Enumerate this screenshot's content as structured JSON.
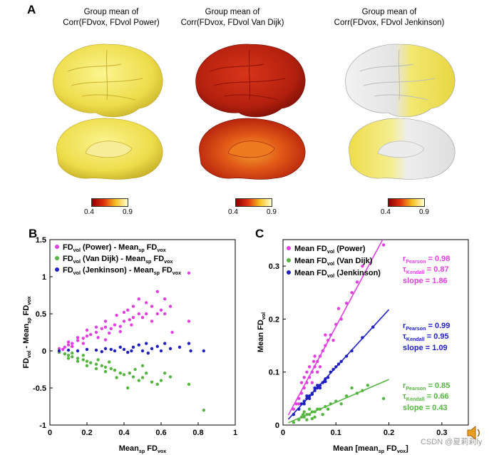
{
  "panel_a": {
    "letter": "A",
    "brains": [
      {
        "title_line1": "Group mean of",
        "title_line2": "Corr(FDvox, FDvol Power)",
        "colormap_hint": "yellow"
      },
      {
        "title_line1": "Group mean of",
        "title_line2": "Corr(FDvox, FDvol Van Dijk)",
        "colormap_hint": "red"
      },
      {
        "title_line1": "Group mean of",
        "title_line2": "Corr(FDvox, FDvol Jenkinson)",
        "colormap_hint": "white-yellow"
      }
    ],
    "colorbar": {
      "min_label": "0.4",
      "max_label": "0.9",
      "colors": [
        "#8b0000",
        "#e03010",
        "#f5c020",
        "#ffffd0"
      ]
    }
  },
  "chart_data": [
    {
      "panel": "B",
      "type": "scatter",
      "xlabel": "Mean_sp FD_vox",
      "ylabel": "FD_vol - Mean_sp FD_vox",
      "xlim": [
        0,
        1
      ],
      "ylim": [
        -1,
        1.5
      ],
      "xticks": [
        "0",
        "0.2",
        "0.4",
        "0.6",
        "0.8",
        "1"
      ],
      "yticks": [
        "-1",
        "-0.5",
        "0",
        "0.5",
        "1",
        "1.5"
      ],
      "legend_position": "top-left",
      "series": [
        {
          "name": "FDvol (Power) - Meansp FDvox",
          "color": "#e040e0",
          "points": [
            [
              0.05,
              0.03
            ],
            [
              0.08,
              0.05
            ],
            [
              0.1,
              0.08
            ],
            [
              0.12,
              0.1
            ],
            [
              0.15,
              0.14
            ],
            [
              0.18,
              0.17
            ],
            [
              0.2,
              0.2
            ],
            [
              0.22,
              0.22
            ],
            [
              0.25,
              0.25
            ],
            [
              0.28,
              0.3
            ],
            [
              0.3,
              0.32
            ],
            [
              0.33,
              0.3
            ],
            [
              0.35,
              0.35
            ],
            [
              0.38,
              0.33
            ],
            [
              0.4,
              0.4
            ],
            [
              0.43,
              0.42
            ],
            [
              0.45,
              0.45
            ],
            [
              0.48,
              0.5
            ],
            [
              0.5,
              0.45
            ],
            [
              0.52,
              0.5
            ],
            [
              0.55,
              0.6
            ],
            [
              0.58,
              0.5
            ],
            [
              0.6,
              0.55
            ],
            [
              0.62,
              0.7
            ],
            [
              0.65,
              0.6
            ],
            [
              0.48,
              0.7
            ],
            [
              0.42,
              0.55
            ],
            [
              0.36,
              0.48
            ],
            [
              0.3,
              0.4
            ],
            [
              0.25,
              0.32
            ],
            [
              0.2,
              0.28
            ],
            [
              0.15,
              0.18
            ],
            [
              0.1,
              0.12
            ],
            [
              0.62,
              0.5
            ],
            [
              0.66,
              0.25
            ],
            [
              0.75,
              0.4
            ],
            [
              0.75,
              1.05
            ],
            [
              0.58,
              0.8
            ],
            [
              0.52,
              0.65
            ],
            [
              0.4,
              0.52
            ],
            [
              0.45,
              0.6
            ],
            [
              0.55,
              0.4
            ],
            [
              0.18,
              0.1
            ],
            [
              0.12,
              0.06
            ],
            [
              0.07,
              0.02
            ],
            [
              0.26,
              0.18
            ],
            [
              0.32,
              0.24
            ],
            [
              0.38,
              0.26
            ],
            [
              0.44,
              0.35
            ],
            [
              0.3,
              0.15
            ]
          ]
        },
        {
          "name": "FDvol (Van Dijk) - Meansp FDvox",
          "color": "#55b540",
          "points": [
            [
              0.05,
              -0.02
            ],
            [
              0.08,
              -0.04
            ],
            [
              0.1,
              -0.06
            ],
            [
              0.12,
              -0.08
            ],
            [
              0.15,
              -0.1
            ],
            [
              0.18,
              -0.12
            ],
            [
              0.2,
              -0.14
            ],
            [
              0.22,
              -0.16
            ],
            [
              0.25,
              -0.18
            ],
            [
              0.28,
              -0.2
            ],
            [
              0.3,
              -0.22
            ],
            [
              0.33,
              -0.24
            ],
            [
              0.35,
              -0.26
            ],
            [
              0.38,
              -0.3
            ],
            [
              0.4,
              -0.32
            ],
            [
              0.43,
              -0.3
            ],
            [
              0.45,
              -0.35
            ],
            [
              0.48,
              -0.4
            ],
            [
              0.5,
              -0.36
            ],
            [
              0.52,
              -0.3
            ],
            [
              0.55,
              -0.42
            ],
            [
              0.58,
              -0.45
            ],
            [
              0.6,
              -0.4
            ],
            [
              0.65,
              -0.35
            ],
            [
              0.75,
              -0.45
            ],
            [
              0.83,
              -0.8
            ],
            [
              0.42,
              -0.5
            ],
            [
              0.36,
              -0.36
            ],
            [
              0.3,
              -0.28
            ],
            [
              0.25,
              -0.24
            ],
            [
              0.2,
              -0.2
            ],
            [
              0.15,
              -0.14
            ],
            [
              0.1,
              -0.1
            ],
            [
              0.26,
              -0.12
            ],
            [
              0.32,
              -0.15
            ],
            [
              0.46,
              -0.25
            ],
            [
              0.5,
              -0.2
            ],
            [
              0.62,
              -0.3
            ],
            [
              0.18,
              -0.06
            ],
            [
              0.12,
              -0.03
            ]
          ]
        },
        {
          "name": "FDvol (Jenkinson) - Meansp FDvox",
          "color": "#2020c0",
          "points": [
            [
              0.05,
              0.0
            ],
            [
              0.1,
              0.01
            ],
            [
              0.15,
              0.0
            ],
            [
              0.2,
              0.02
            ],
            [
              0.25,
              0.01
            ],
            [
              0.3,
              0.03
            ],
            [
              0.35,
              0.0
            ],
            [
              0.38,
              0.05
            ],
            [
              0.4,
              0.02
            ],
            [
              0.42,
              -0.02
            ],
            [
              0.45,
              0.05
            ],
            [
              0.48,
              0.08
            ],
            [
              0.5,
              0.0
            ],
            [
              0.52,
              0.1
            ],
            [
              0.55,
              0.03
            ],
            [
              0.58,
              0.06
            ],
            [
              0.6,
              0.0
            ],
            [
              0.62,
              0.1
            ],
            [
              0.65,
              0.03
            ],
            [
              0.7,
              0.05
            ],
            [
              0.75,
              0.1
            ],
            [
              0.76,
              0.0
            ],
            [
              0.83,
              0.0
            ],
            [
              0.28,
              -0.01
            ],
            [
              0.33,
              0.02
            ],
            [
              0.44,
              0.0
            ],
            [
              0.53,
              -0.03
            ]
          ]
        }
      ]
    },
    {
      "panel": "C",
      "type": "scatter",
      "xlabel": "Mean [mean_sp FD_vox]",
      "ylabel": "Mean FD_vol",
      "xlim": [
        0,
        0.35
      ],
      "ylim": [
        0,
        0.35
      ],
      "xticks": [
        "0",
        "0.1",
        "0.2",
        "0.3"
      ],
      "yticks": [
        "0",
        "0.1",
        "0.2",
        "0.3"
      ],
      "legend_position": "top-left",
      "series": [
        {
          "name": "Mean FDvol (Power)",
          "color": "#e040e0",
          "slope": 1.86,
          "stats": {
            "pearson_label": "rPearson = 0.98",
            "kendall_label": "τKendall = 0.87",
            "slope_label": "slope = 1.86"
          },
          "points": [
            [
              0.02,
              0.03
            ],
            [
              0.025,
              0.04
            ],
            [
              0.03,
              0.05
            ],
            [
              0.035,
              0.06
            ],
            [
              0.04,
              0.07
            ],
            [
              0.045,
              0.08
            ],
            [
              0.05,
              0.09
            ],
            [
              0.055,
              0.1
            ],
            [
              0.06,
              0.11
            ],
            [
              0.065,
              0.12
            ],
            [
              0.07,
              0.13
            ],
            [
              0.075,
              0.14
            ],
            [
              0.08,
              0.15
            ],
            [
              0.085,
              0.16
            ],
            [
              0.09,
              0.17
            ],
            [
              0.1,
              0.19
            ],
            [
              0.11,
              0.2
            ],
            [
              0.12,
              0.23
            ],
            [
              0.13,
              0.25
            ],
            [
              0.14,
              0.27
            ],
            [
              0.19,
              0.34
            ],
            [
              0.045,
              0.1
            ],
            [
              0.055,
              0.08
            ],
            [
              0.06,
              0.13
            ],
            [
              0.07,
              0.11
            ],
            [
              0.05,
              0.11
            ],
            [
              0.04,
              0.09
            ],
            [
              0.065,
              0.1
            ],
            [
              0.08,
              0.17
            ],
            [
              0.095,
              0.16
            ],
            [
              0.15,
              0.3
            ],
            [
              0.105,
              0.22
            ],
            [
              0.035,
              0.08
            ],
            [
              0.03,
              0.04
            ],
            [
              0.058,
              0.12
            ]
          ]
        },
        {
          "name": "Mean FDvol (Van Dijk)",
          "color": "#55b540",
          "slope": 0.43,
          "stats": {
            "pearson_label": "rPearson = 0.85",
            "kendall_label": "τKendall = 0.66",
            "slope_label": "slope = 0.43"
          },
          "points": [
            [
              0.02,
              0.005
            ],
            [
              0.03,
              0.01
            ],
            [
              0.035,
              0.015
            ],
            [
              0.04,
              0.015
            ],
            [
              0.045,
              0.02
            ],
            [
              0.05,
              0.02
            ],
            [
              0.055,
              0.025
            ],
            [
              0.06,
              0.025
            ],
            [
              0.065,
              0.03
            ],
            [
              0.07,
              0.03
            ],
            [
              0.08,
              0.035
            ],
            [
              0.09,
              0.04
            ],
            [
              0.1,
              0.045
            ],
            [
              0.12,
              0.055
            ],
            [
              0.14,
              0.06
            ],
            [
              0.15,
              0.065
            ],
            [
              0.19,
              0.05
            ],
            [
              0.05,
              0.03
            ],
            [
              0.06,
              0.015
            ],
            [
              0.04,
              0.025
            ],
            [
              0.075,
              0.02
            ],
            [
              0.085,
              0.03
            ],
            [
              0.11,
              0.04
            ],
            [
              0.13,
              0.07
            ],
            [
              0.16,
              0.075
            ],
            [
              0.045,
              0.01
            ],
            [
              0.038,
              0.02
            ],
            [
              0.055,
              0.012
            ]
          ]
        },
        {
          "name": "Mean FDvol (Jenkinson)",
          "color": "#2020c0",
          "slope": 1.09,
          "stats": {
            "pearson_label": "rPearson = 0.99",
            "kendall_label": "τKendall = 0.95",
            "slope_label": "slope = 1.09"
          },
          "points": [
            [
              0.02,
              0.02
            ],
            [
              0.03,
              0.03
            ],
            [
              0.035,
              0.04
            ],
            [
              0.04,
              0.045
            ],
            [
              0.045,
              0.05
            ],
            [
              0.05,
              0.055
            ],
            [
              0.055,
              0.06
            ],
            [
              0.06,
              0.065
            ],
            [
              0.065,
              0.07
            ],
            [
              0.07,
              0.075
            ],
            [
              0.075,
              0.08
            ],
            [
              0.08,
              0.087
            ],
            [
              0.085,
              0.09
            ],
            [
              0.09,
              0.1
            ],
            [
              0.1,
              0.11
            ],
            [
              0.11,
              0.12
            ],
            [
              0.12,
              0.13
            ],
            [
              0.13,
              0.14
            ],
            [
              0.15,
              0.165
            ],
            [
              0.17,
              0.185
            ],
            [
              0.045,
              0.055
            ],
            [
              0.055,
              0.058
            ],
            [
              0.065,
              0.075
            ],
            [
              0.07,
              0.07
            ],
            [
              0.06,
              0.07
            ],
            [
              0.05,
              0.05
            ],
            [
              0.04,
              0.04
            ],
            [
              0.095,
              0.105
            ],
            [
              0.105,
              0.115
            ],
            [
              0.08,
              0.082
            ]
          ]
        }
      ]
    }
  ],
  "panel_b": {
    "letter": "B",
    "ylabel_main": "FD",
    "ylabel_sub1": "vol",
    "ylabel_mid": " - Mean",
    "ylabel_sub2": "sp",
    "ylabel_tail": " FD",
    "ylabel_sub3": "vox",
    "xlabel_main": "Mean",
    "xlabel_sub1": "sp",
    "xlabel_tail": " FD",
    "xlabel_sub2": "vox"
  },
  "panel_c": {
    "letter": "C",
    "ylabel_main": "Mean FD",
    "ylabel_sub": "vol",
    "xlabel_main": "Mean [mean",
    "xlabel_sub1": "sp",
    "xlabel_tail": " FD",
    "xlabel_sub2": "vox",
    "xlabel_end": "]"
  },
  "watermark": "CSDN @夏莉莉ly"
}
